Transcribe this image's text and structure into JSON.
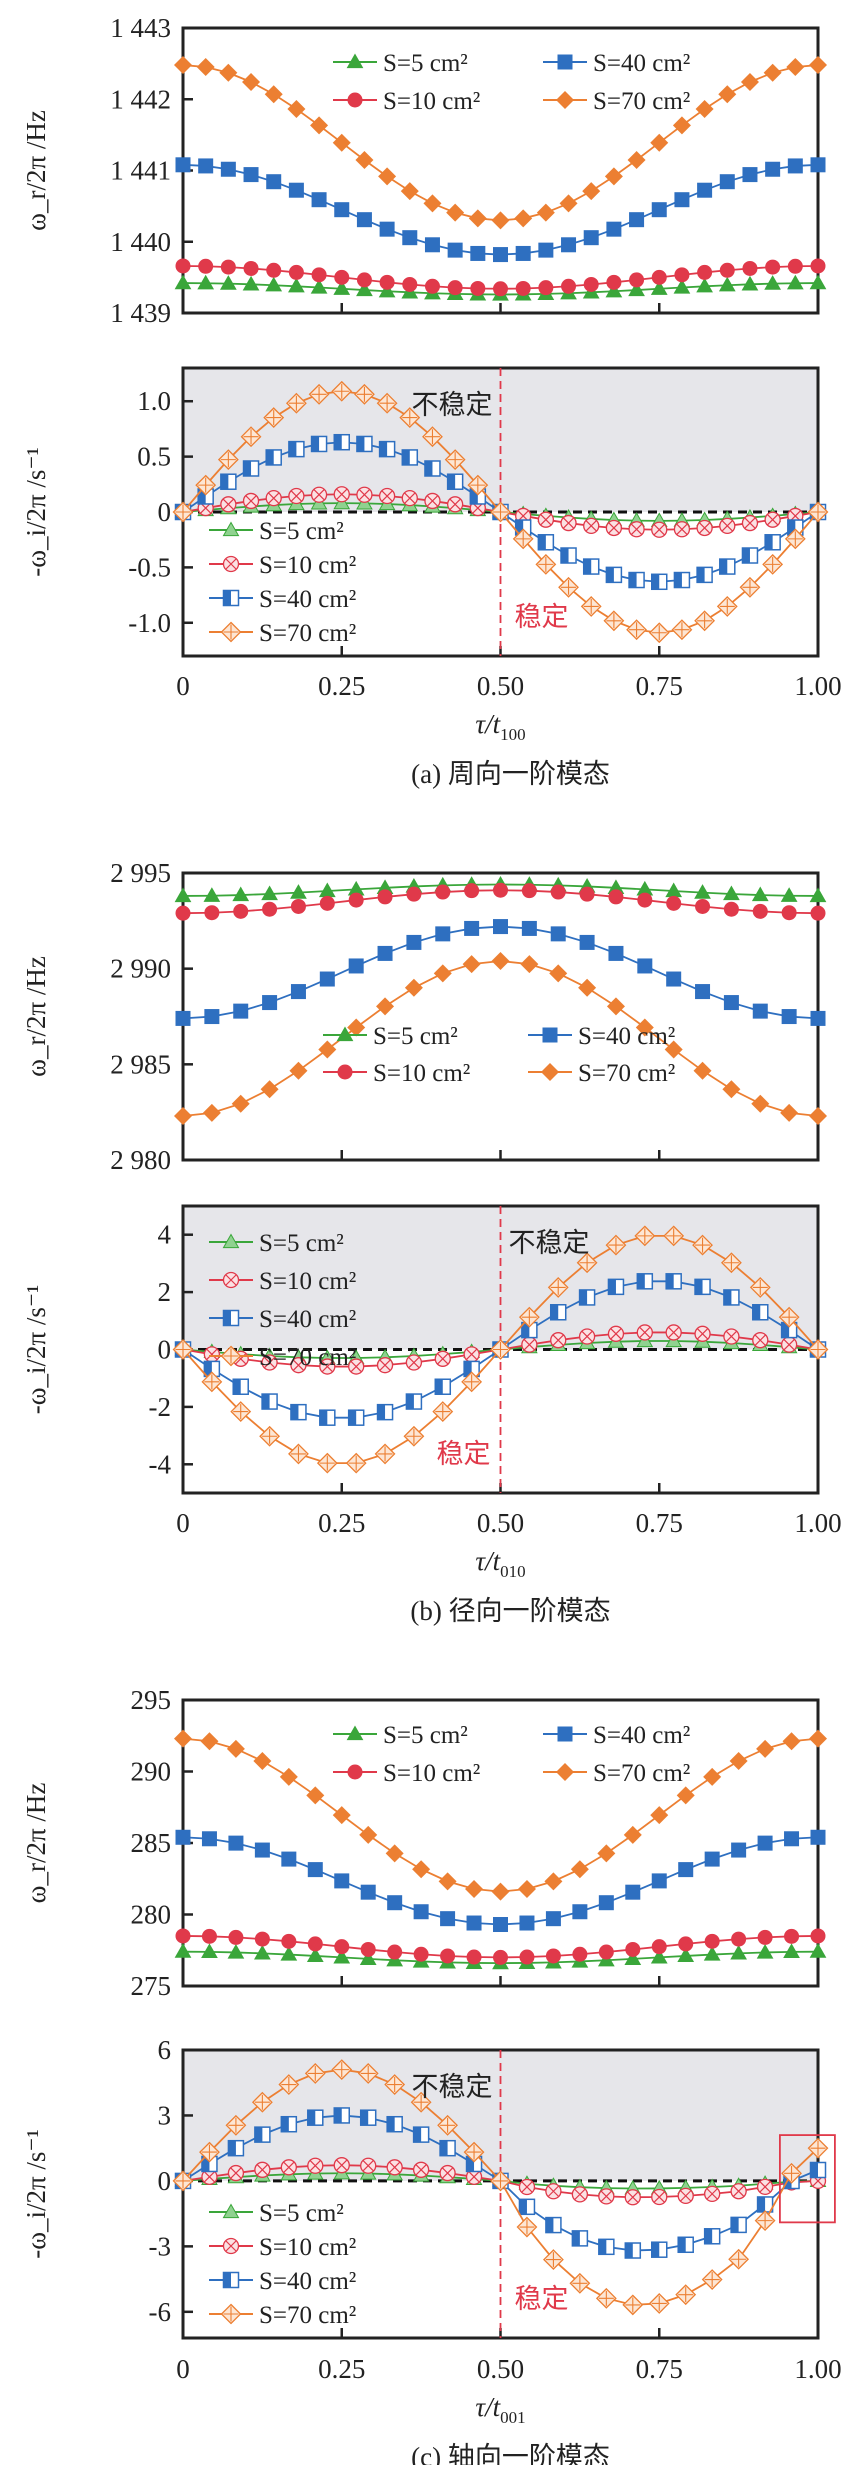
{
  "colors": {
    "s5": "#3aa63a",
    "s10": "#e0394a",
    "s40": "#2e6fc0",
    "s70": "#ec7f32",
    "unstable_bg": "#e6e6ea",
    "divider": "#e0394a",
    "frame": "#222222"
  },
  "legend_labels": [
    "S=5 cm²",
    "S=10 cm²",
    "S=40 cm²",
    "S=70 cm²"
  ],
  "annotations": {
    "unstable": "不稳定",
    "stable": "稳定"
  },
  "chart_data": [
    {
      "id": "a-real",
      "panel": "(a)",
      "type": "line",
      "ylabel": "ω_r/2π /Hz",
      "ylim": [
        1439,
        1443
      ],
      "yticks": [
        1439,
        1440,
        1441,
        1442,
        1443
      ],
      "ytick_labels": [
        "1 439",
        "1 440",
        "1 441",
        "1 442",
        "1 443"
      ],
      "xlim": [
        0,
        1
      ],
      "xticks": [
        0,
        0.25,
        0.5,
        0.75,
        1
      ],
      "n_points": 29,
      "shape": "cos-dip",
      "series": [
        {
          "name": "S=5 cm²",
          "key": "s5",
          "marker": "triangle",
          "edge": 1439.42,
          "mid": 1439.26
        },
        {
          "name": "S=10 cm²",
          "key": "s10",
          "marker": "circle",
          "edge": 1439.66,
          "mid": 1439.34
        },
        {
          "name": "S=40 cm²",
          "key": "s40",
          "marker": "square",
          "edge": 1441.08,
          "mid": 1439.82
        },
        {
          "name": "S=70 cm²",
          "key": "s70",
          "marker": "diamond",
          "edge": 1442.48,
          "mid": 1440.3
        }
      ],
      "legend": "top-center-2col"
    },
    {
      "id": "a-imag",
      "panel": "(a)",
      "type": "line",
      "ylabel": "-ω_i/2π /s⁻¹",
      "ylim": [
        -1.3,
        1.3
      ],
      "yticks": [
        -1,
        -0.5,
        0,
        0.5,
        1
      ],
      "ytick_labels": [
        "-1.0",
        "-0.5",
        "0",
        "0.5",
        "1.0"
      ],
      "xlim": [
        0,
        1
      ],
      "xticks": [
        0,
        0.25,
        0.5,
        0.75,
        1
      ],
      "xtick_labels": [
        "0",
        "0.25",
        "0.50",
        "0.75",
        "1.00"
      ],
      "xlabel": "τ/t",
      "xlabel_sub": "100",
      "n_points": 29,
      "shape": "sine",
      "unstable_region": "upper",
      "unstable_label_side": "left",
      "stable_label_side": "right",
      "series": [
        {
          "name": "S=5 cm²",
          "key": "s5",
          "marker": "triangle-open",
          "amp": 0.08
        },
        {
          "name": "S=10 cm²",
          "key": "s10",
          "marker": "circle-x",
          "amp": 0.16
        },
        {
          "name": "S=40 cm²",
          "key": "s40",
          "marker": "square-half",
          "amp": 0.63
        },
        {
          "name": "S=70 cm²",
          "key": "s70",
          "marker": "diamond-plus",
          "amp": 1.09
        }
      ],
      "legend": "lower-left",
      "caption": "(a) 周向一阶模态"
    },
    {
      "id": "b-real",
      "panel": "(b)",
      "type": "line",
      "ylabel": "ω_r/2π /Hz",
      "ylim": [
        2980,
        2995
      ],
      "yticks": [
        2980,
        2985,
        2990,
        2995
      ],
      "ytick_labels": [
        "2 980",
        "2 985",
        "2 990",
        "2 995"
      ],
      "xlim": [
        0,
        1
      ],
      "xticks": [
        0,
        0.25,
        0.5,
        0.75,
        1
      ],
      "n_points": 23,
      "shape": "cos-peak",
      "series": [
        {
          "name": "S=5 cm²",
          "key": "s5",
          "marker": "triangle",
          "edge": 2993.8,
          "mid": 2994.4
        },
        {
          "name": "S=10 cm²",
          "key": "s10",
          "marker": "circle",
          "edge": 2992.9,
          "mid": 2994.1
        },
        {
          "name": "S=40 cm²",
          "key": "s40",
          "marker": "square",
          "edge": 2987.4,
          "mid": 2992.2
        },
        {
          "name": "S=70 cm²",
          "key": "s70",
          "marker": "diamond",
          "edge": 2982.3,
          "mid": 2990.4
        }
      ],
      "legend": "bottom-center-2col"
    },
    {
      "id": "b-imag",
      "panel": "(b)",
      "type": "line",
      "ylabel": "-ω_i/2π /s⁻¹",
      "ylim": [
        -5,
        5
      ],
      "yticks": [
        -4,
        -2,
        0,
        2,
        4
      ],
      "ytick_labels": [
        "-4",
        "-2",
        "0",
        "2",
        "4"
      ],
      "xlim": [
        0,
        1
      ],
      "xticks": [
        0,
        0.25,
        0.5,
        0.75,
        1
      ],
      "xtick_labels": [
        "0",
        "0.25",
        "0.50",
        "0.75",
        "1.00"
      ],
      "xlabel": "τ/t",
      "xlabel_sub": "010",
      "n_points": 23,
      "shape": "neg-sine",
      "unstable_region": "upper",
      "unstable_label_side": "right",
      "stable_label_side": "left",
      "series": [
        {
          "name": "S=5 cm²",
          "key": "s5",
          "marker": "triangle-open",
          "amp": 0.3
        },
        {
          "name": "S=10 cm²",
          "key": "s10",
          "marker": "circle-x",
          "amp": 0.6
        },
        {
          "name": "S=40 cm²",
          "key": "s40",
          "marker": "square-half",
          "amp": 2.4
        },
        {
          "name": "S=70 cm²",
          "key": "s70",
          "marker": "diamond-plus",
          "amp": 4.0
        }
      ],
      "legend": "upper-left",
      "caption": "(b) 径向一阶模态"
    },
    {
      "id": "c-real",
      "panel": "(c)",
      "type": "line",
      "ylabel": "ω_r/2π /Hz",
      "ylim": [
        275,
        295
      ],
      "yticks": [
        275,
        280,
        285,
        290,
        295
      ],
      "ytick_labels": [
        "275",
        "280",
        "285",
        "290",
        "295"
      ],
      "xlim": [
        0,
        1
      ],
      "xticks": [
        0,
        0.25,
        0.5,
        0.75,
        1
      ],
      "n_points": 25,
      "shape": "cos-dip",
      "series": [
        {
          "name": "S=5 cm²",
          "key": "s5",
          "marker": "triangle",
          "edge": 277.4,
          "mid": 276.6
        },
        {
          "name": "S=10 cm²",
          "key": "s10",
          "marker": "circle",
          "edge": 278.5,
          "mid": 277.0
        },
        {
          "name": "S=40 cm²",
          "key": "s40",
          "marker": "square",
          "edge": 285.4,
          "mid": 279.3
        },
        {
          "name": "S=70 cm²",
          "key": "s70",
          "marker": "diamond",
          "edge": 292.3,
          "mid": 281.6
        }
      ],
      "legend": "top-center-2col"
    },
    {
      "id": "c-imag",
      "panel": "(c)",
      "type": "line",
      "ylabel": "-ω_i/2π /s⁻¹",
      "ylim": [
        -7.2,
        6
      ],
      "yticks": [
        -6,
        -3,
        0,
        3,
        6
      ],
      "ytick_labels": [
        "-6",
        "-3",
        "0",
        "3",
        "6"
      ],
      "xlim": [
        0,
        1
      ],
      "xticks": [
        0,
        0.25,
        0.5,
        0.75,
        1
      ],
      "xtick_labels": [
        "0",
        "0.25",
        "0.50",
        "0.75",
        "1.00"
      ],
      "xlabel": "τ/t",
      "xlabel_sub": "001",
      "n_points": 25,
      "shape": "sine-skew",
      "unstable_region": "upper",
      "unstable_label_side": "left",
      "stable_label_side": "right",
      "highlight_box": "end-of-cycle points near τ/t=1.00",
      "series": [
        {
          "name": "S=5 cm²",
          "key": "s5",
          "marker": "triangle-open",
          "amp": 0.35,
          "neg_amp": 0.35,
          "end": 0.0
        },
        {
          "name": "S=10 cm²",
          "key": "s10",
          "marker": "circle-x",
          "amp": 0.72,
          "neg_amp": 0.75,
          "end": 0.0
        },
        {
          "name": "S=40 cm²",
          "key": "s40",
          "marker": "square-half",
          "amp": 3.0,
          "neg_amp": 3.2,
          "end": 0.5
        },
        {
          "name": "S=70 cm²",
          "key": "s70",
          "marker": "diamond-plus",
          "amp": 5.1,
          "neg_amp": 5.7,
          "end": 1.5
        }
      ],
      "legend": "lower-left",
      "caption": "(c) 轴向一阶模态"
    }
  ]
}
